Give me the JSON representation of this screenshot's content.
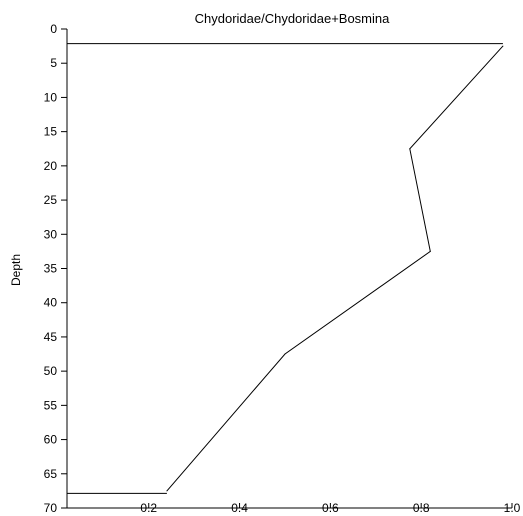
{
  "chart_data": {
    "type": "line",
    "title": "Chydoridae/Chydoridae+Bosmina",
    "xlabel": "",
    "ylabel": "Depth",
    "xlim": [
      0.02,
      1.0
    ],
    "ylim": [
      70,
      0
    ],
    "y_inverted": true,
    "x_ticks": [
      0.2,
      0.4,
      0.6,
      0.8,
      1.0
    ],
    "x_tick_labels": [
      "0.2",
      "0.4",
      "0.6",
      "0.8",
      "1.0"
    ],
    "y_ticks": [
      0,
      5,
      10,
      15,
      20,
      25,
      30,
      35,
      40,
      45,
      50,
      55,
      60,
      65,
      70
    ],
    "y_tick_labels": [
      "0",
      "5",
      "10",
      "15",
      "20",
      "25",
      "30",
      "35",
      "40",
      "45",
      "50",
      "55",
      "60",
      "65",
      "70"
    ],
    "grid": false,
    "series": [
      {
        "points": [
          {
            "x": 0.98,
            "y": 2.5
          },
          {
            "x": 0.775,
            "y": 17.5
          },
          {
            "x": 0.82,
            "y": 32.5
          },
          {
            "x": 0.5,
            "y": 47.5
          },
          {
            "x": 0.24,
            "y": 67.5
          }
        ]
      }
    ]
  }
}
